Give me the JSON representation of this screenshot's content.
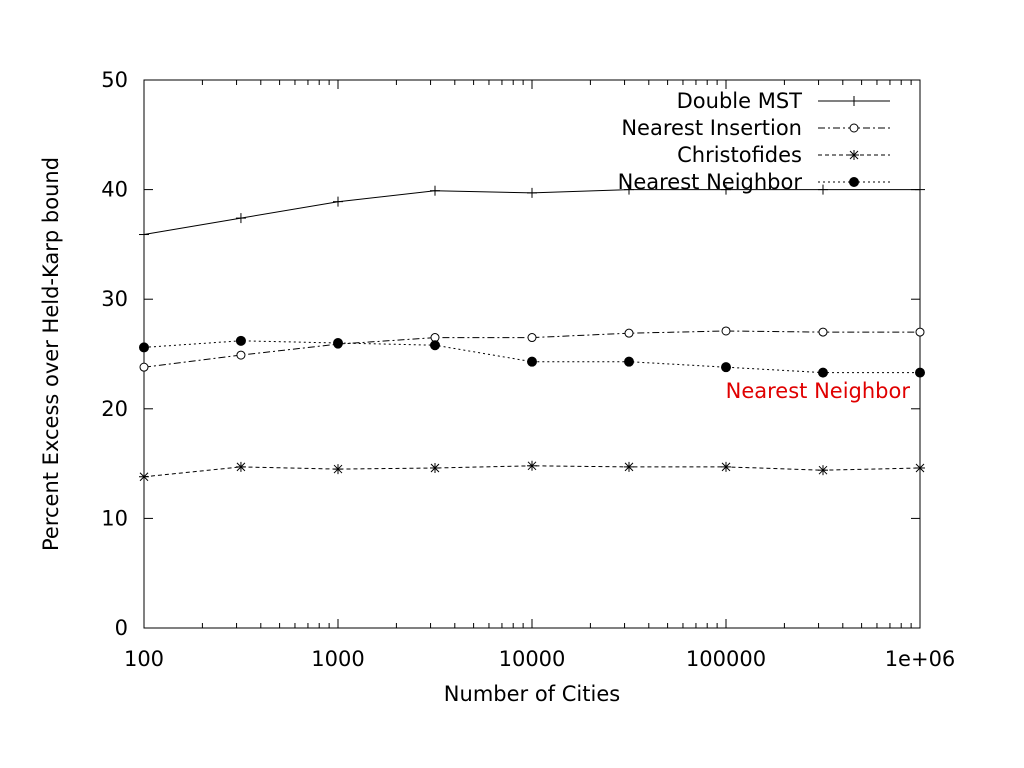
{
  "chart_data": {
    "type": "line",
    "xlabel": "Number of Cities",
    "ylabel": "Percent Excess over Held-Karp bound",
    "x_scale": "log",
    "xlim": [
      100,
      1000000
    ],
    "ylim": [
      0,
      50
    ],
    "x_ticks": [
      "100",
      "1000",
      "10000",
      "100000",
      "1e+06"
    ],
    "y_ticks": [
      "0",
      "10",
      "20",
      "30",
      "40",
      "50"
    ],
    "legend_position": "top-right",
    "grid": false,
    "series": [
      {
        "name": "Double MST",
        "marker": "plus",
        "line": "solid",
        "x": [
          100,
          316,
          1000,
          3162,
          10000,
          31623,
          100000,
          316228,
          1000000
        ],
        "y": [
          35.9,
          37.4,
          38.9,
          39.9,
          39.7,
          40.0,
          40.0,
          40.0,
          40.0
        ]
      },
      {
        "name": "Nearest Insertion",
        "marker": "open-circle",
        "line": "dash-dot",
        "x": [
          100,
          316,
          1000,
          3162,
          10000,
          31623,
          100000,
          316228,
          1000000
        ],
        "y": [
          23.8,
          24.9,
          25.9,
          26.5,
          26.5,
          26.9,
          27.1,
          27.0,
          27.0
        ]
      },
      {
        "name": "Christofides",
        "marker": "asterisk",
        "line": "dashed",
        "x": [
          100,
          316,
          1000,
          3162,
          10000,
          31623,
          100000,
          316228,
          1000000
        ],
        "y": [
          13.8,
          14.7,
          14.5,
          14.6,
          14.8,
          14.7,
          14.7,
          14.4,
          14.6
        ]
      },
      {
        "name": "Nearest Neighbor",
        "marker": "filled-circle",
        "line": "dotted",
        "x": [
          100,
          316,
          1000,
          3162,
          10000,
          31623,
          100000,
          316228,
          1000000
        ],
        "y": [
          25.6,
          26.2,
          26.0,
          25.8,
          24.3,
          24.3,
          23.8,
          23.3,
          23.3
        ]
      }
    ],
    "annotations": [
      {
        "text": "Nearest Neighbor",
        "color": "#e00000",
        "near_series": "Nearest Neighbor"
      }
    ]
  }
}
